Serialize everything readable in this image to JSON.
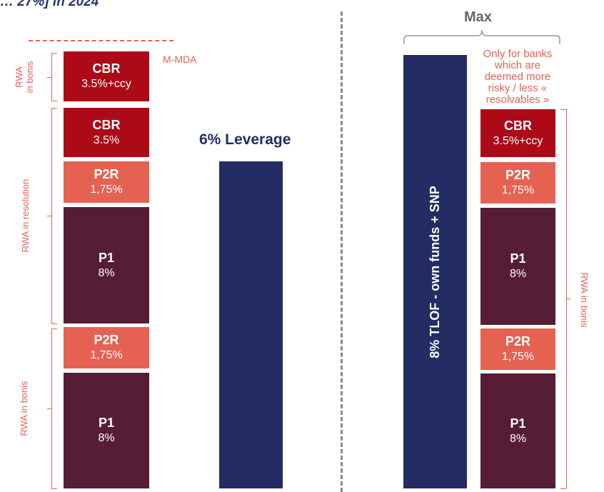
{
  "page_title": "… 27%] in 2024",
  "left_column": {
    "m_mda_label": "M-MDA",
    "blocks": [
      {
        "name": "CBR",
        "value": "3.5%+ccy"
      },
      {
        "name": "CBR",
        "value": "3.5%"
      },
      {
        "name": "P2R",
        "value": "1,75%"
      },
      {
        "name": "P1",
        "value": "8%"
      },
      {
        "name": "P2R",
        "value": "1,75%"
      },
      {
        "name": "P1",
        "value": "8%"
      }
    ],
    "side_labels": {
      "top": "RWA\nin bonis",
      "middle": "RWA in resolution",
      "bottom": "RWA in bonis"
    }
  },
  "leverage": {
    "label": "6% Leverage"
  },
  "right_section": {
    "max_label": "Max",
    "note": "Only for banks which are deemed more risky / less « resolvables »",
    "tlof_bar_label": "8% TLOF - own funds + SNP",
    "blocks": [
      {
        "name": "CBR",
        "value": "3.5%+ccy"
      },
      {
        "name": "P2R",
        "value": "1,75%"
      },
      {
        "name": "P1",
        "value": "8%"
      },
      {
        "name": "P2R",
        "value": "1,75%"
      },
      {
        "name": "P1",
        "value": "8%"
      }
    ],
    "side_label": "RWA in bonis"
  },
  "colors": {
    "cbr": "#ad0a18",
    "p2r": "#e56253",
    "p1": "#571d36",
    "navy": "#232c63",
    "label": "#e56253",
    "separator": "#8a8a8a"
  }
}
